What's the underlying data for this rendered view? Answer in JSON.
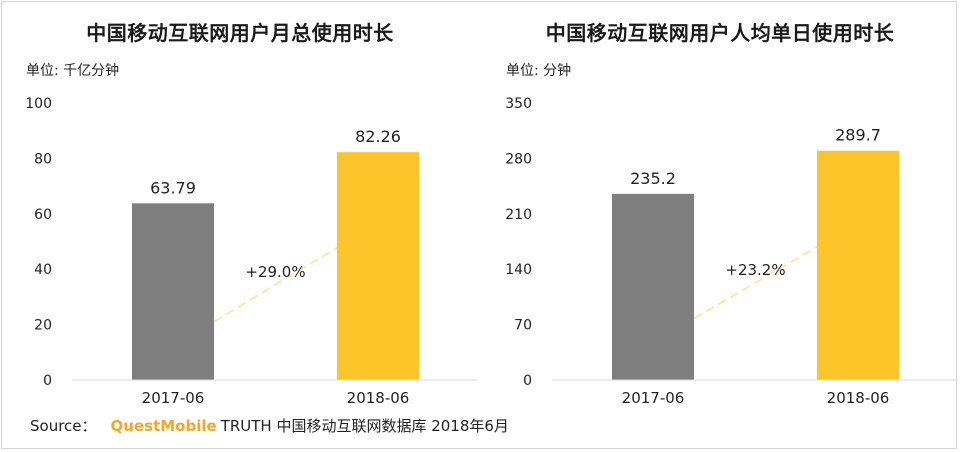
{
  "colors": {
    "bar_2017": "#7f7f7f",
    "bar_2018": "#fcc62b",
    "arrow": "#fce9a6",
    "axis": "#d9d9d9"
  },
  "chart_data": [
    {
      "type": "bar",
      "title": "中国移动互联网用户月总使用时长",
      "unit": "单位: 千亿分钟",
      "categories": [
        "2017-06",
        "2018-06"
      ],
      "values": [
        63.79,
        82.26
      ],
      "value_labels": [
        "63.79",
        "82.26"
      ],
      "ylim": [
        0,
        100
      ],
      "yticks": [
        0,
        20,
        40,
        60,
        80,
        100
      ],
      "growth_label": "+29.0%",
      "grid": false,
      "legend": "none"
    },
    {
      "type": "bar",
      "title": "中国移动互联网用户人均单日使用时长",
      "unit": "单位: 分钟",
      "categories": [
        "2017-06",
        "2018-06"
      ],
      "values": [
        235.2,
        289.7
      ],
      "value_labels": [
        "235.2",
        "289.7"
      ],
      "ylim": [
        0,
        350
      ],
      "yticks": [
        0,
        70,
        140,
        210,
        280,
        350
      ],
      "growth_label": "+23.2%",
      "grid": false,
      "legend": "none"
    }
  ],
  "source": {
    "prefix": "Source：",
    "brand": "QuestMobile",
    "text": "TRUTH 中国移动互联网数据库 2018年6月"
  }
}
